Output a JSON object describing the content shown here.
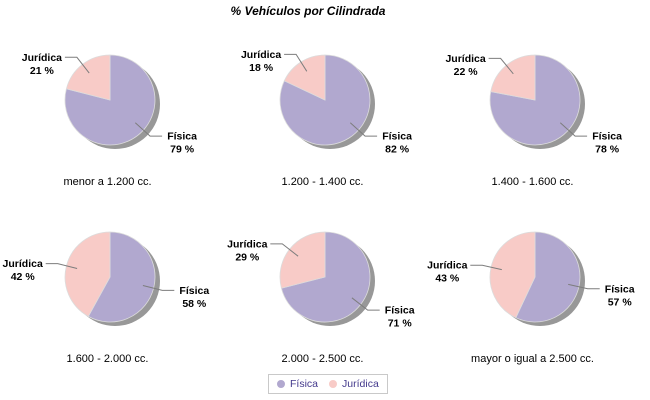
{
  "title": "% Vehículos por Cilindrada",
  "colors": {
    "background": "#FFFFFF",
    "fisica_slice": "#B1A8CF",
    "juridica_slice": "#F8CBC7",
    "shadow": "#989898",
    "slice_border": "#DCDCDC",
    "leader_line": "#7D7D7D",
    "label_text": "#000000",
    "category_text": "#000000",
    "title_text": "#000000",
    "legend_text": "#43398C",
    "legend_border": "#C9C9C9"
  },
  "chart_data": {
    "type": "pie",
    "layout": "2x3-small-multiples",
    "title": "% Vehículos por Cilindrada",
    "series": [
      "Física",
      "Jurídica"
    ],
    "unit": "%",
    "legend_position": "bottom",
    "start_angle": "top",
    "direction": "counterclockwise",
    "charts": [
      {
        "category": "menor a 1.200 cc.",
        "values": {
          "Física": 79,
          "Jurídica": 21
        }
      },
      {
        "category": "1.200 - 1.400 cc.",
        "values": {
          "Física": 82,
          "Jurídica": 18
        }
      },
      {
        "category": "1.400 - 1.600 cc.",
        "values": {
          "Física": 78,
          "Jurídica": 22
        }
      },
      {
        "category": "1.600 - 2.000 cc.",
        "values": {
          "Física": 58,
          "Jurídica": 42
        }
      },
      {
        "category": "2.000 - 2.500 cc.",
        "values": {
          "Física": 71,
          "Jurídica": 29
        }
      },
      {
        "category": "mayor o igual a 2.500 cc.",
        "values": {
          "Física": 57,
          "Jurídica": 43
        }
      }
    ]
  }
}
